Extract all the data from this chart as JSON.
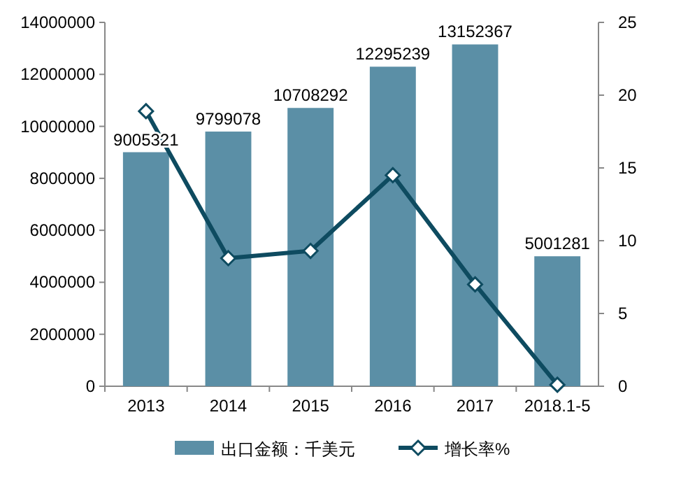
{
  "chart_data": {
    "type": "bar",
    "categories": [
      "2013",
      "2014",
      "2015",
      "2016",
      "2017",
      "2018.1-5"
    ],
    "series": [
      {
        "name": "出口金额：千美元",
        "color": "#5b8fa6",
        "values": [
          9005321,
          9799078,
          10708292,
          12295239,
          13152367,
          5001281
        ],
        "value_labels": [
          "9005321",
          "9799078",
          "10708292",
          "12295239",
          "13152367",
          "5001281"
        ]
      },
      {
        "name": "增长率%",
        "type": "line",
        "axis": "y2",
        "color": "#0e4b60",
        "marker": "diamond",
        "values": [
          18.9,
          8.8,
          9.3,
          14.5,
          7.0,
          0.1
        ]
      }
    ],
    "ylim": [
      0,
      14000000
    ],
    "yticks": [
      0,
      2000000,
      4000000,
      6000000,
      8000000,
      10000000,
      12000000,
      14000000
    ],
    "y2lim": [
      0,
      25
    ],
    "y2ticks": [
      0,
      5,
      10,
      15,
      20,
      25
    ],
    "legend": "bottom"
  }
}
